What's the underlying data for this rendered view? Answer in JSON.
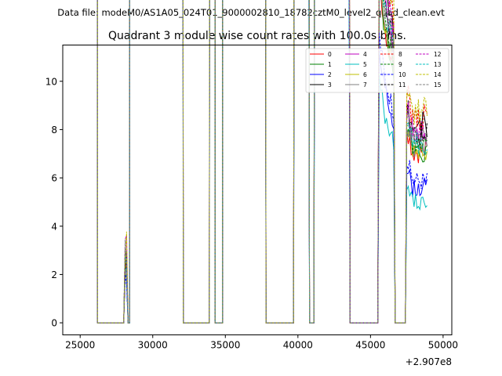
{
  "suptitle": "Data file: modeM0/AS1A05_024T01_9000002810_18782cztM0_level2_quad_clean.evt",
  "chart_data": {
    "type": "line",
    "title": "Quadrant 3 module wise count rates with 100.0s bins.",
    "xlabel": "",
    "ylabel": "",
    "offset_text": "+2.907e8",
    "xlim": [
      23800,
      50600
    ],
    "ylim": [
      -0.5,
      11.5
    ],
    "xticks": [
      25000,
      30000,
      35000,
      40000,
      45000,
      50000
    ],
    "xtick_labels": [
      "25000",
      "30000",
      "35000",
      "40000",
      "45000",
      "50000"
    ],
    "yticks": [
      0,
      2,
      4,
      6,
      8,
      10
    ],
    "ytick_labels": [
      "0",
      "2",
      "4",
      "6",
      "8",
      "10"
    ],
    "legend_location": "upper-right",
    "legend_columns": 4,
    "active_intervals": [
      [
        25000,
        26100
      ],
      [
        28100,
        28200
      ],
      [
        28500,
        32000
      ],
      [
        34000,
        34200
      ],
      [
        34900,
        37700
      ],
      [
        39800,
        40700
      ],
      [
        41200,
        43500
      ],
      [
        45600,
        46600
      ],
      [
        47500,
        48900
      ]
    ],
    "series": [
      {
        "name": "0",
        "color": "#ff0000",
        "dashed": false,
        "level": 7.1
      },
      {
        "name": "1",
        "color": "#008000",
        "dashed": false,
        "level": 7.0
      },
      {
        "name": "2",
        "color": "#0000ff",
        "dashed": false,
        "level": 5.6
      },
      {
        "name": "3",
        "color": "#000000",
        "dashed": false,
        "level": 8.2
      },
      {
        "name": "4",
        "color": "#bf00bf",
        "dashed": false,
        "level": 7.7
      },
      {
        "name": "5",
        "color": "#00bfbf",
        "dashed": false,
        "level": 5.0
      },
      {
        "name": "6",
        "color": "#bfbf00",
        "dashed": false,
        "level": 7.2
      },
      {
        "name": "7",
        "color": "#808080",
        "dashed": false,
        "level": 7.3
      },
      {
        "name": "8",
        "color": "#ff0000",
        "dashed": true,
        "level": 8.5
      },
      {
        "name": "9",
        "color": "#008000",
        "dashed": true,
        "level": 7.4
      },
      {
        "name": "10",
        "color": "#0000ff",
        "dashed": true,
        "level": 5.9
      },
      {
        "name": "11",
        "color": "#000000",
        "dashed": true,
        "level": 7.8
      },
      {
        "name": "12",
        "color": "#bf00bf",
        "dashed": true,
        "level": 8.0
      },
      {
        "name": "13",
        "color": "#00bfbf",
        "dashed": true,
        "level": 7.5
      },
      {
        "name": "14",
        "color": "#bfbf00",
        "dashed": true,
        "level": 8.8
      },
      {
        "name": "15",
        "color": "#808080",
        "dashed": true,
        "level": 7.6
      }
    ]
  }
}
